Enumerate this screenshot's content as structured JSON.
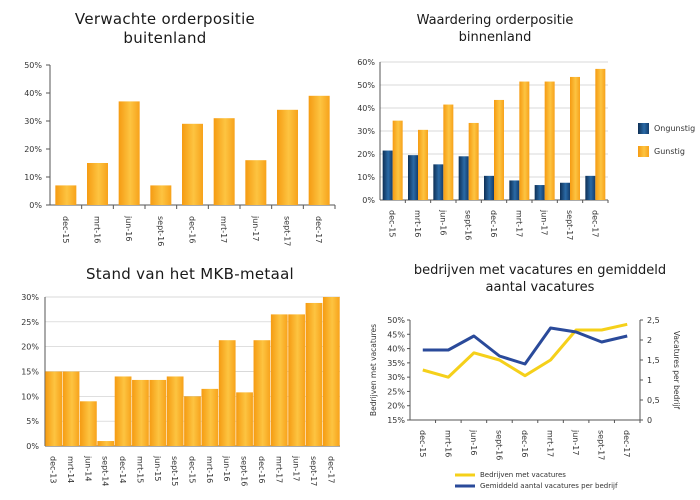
{
  "colors": {
    "bar_orange": "#f8a81e",
    "bar_light": "#fdd36a",
    "bar_dark": "#1c4a7c",
    "line_yellow": "#f5d01a",
    "line_blue": "#2a4a9a",
    "axis": "#555555",
    "grid": "#cccccc"
  },
  "chart_data": [
    {
      "id": "c1",
      "type": "bar",
      "title": "Verwachte orderpositie buitenland",
      "categories": [
        "dec-15",
        "mrt-16",
        "jun-16",
        "sept-16",
        "dec-16",
        "mrt-17",
        "jun-17",
        "sept-17",
        "dec-17"
      ],
      "values": [
        7,
        15,
        37,
        7,
        29,
        31,
        16,
        34,
        39
      ],
      "ylim": [
        0,
        50
      ],
      "yticks": [
        0,
        10,
        20,
        30,
        40,
        50
      ],
      "yformat": "%",
      "grid": false
    },
    {
      "id": "c2",
      "type": "bar",
      "title": "Waardering orderpositie binnenland",
      "categories": [
        "dec-15",
        "mrt-16",
        "jun-16",
        "sept-16",
        "dec-16",
        "mrt-17",
        "jun-17",
        "sept-17",
        "dec-17"
      ],
      "series": [
        {
          "name": "Ongunstig",
          "values": [
            21.5,
            19.5,
            15.5,
            19,
            10.5,
            8.5,
            6.5,
            7.5,
            10.5
          ]
        },
        {
          "name": "Gunstig",
          "values": [
            34.5,
            30.5,
            41.5,
            33.5,
            43.5,
            51.5,
            51.5,
            53.5,
            57
          ]
        }
      ],
      "ylim": [
        0,
        60
      ],
      "yticks": [
        0,
        10,
        20,
        30,
        40,
        50,
        60
      ],
      "yformat": "%",
      "grid": true,
      "legend": "right"
    },
    {
      "id": "c3",
      "type": "bar",
      "title": "Stand van het MKB-metaal",
      "categories": [
        "dec-13",
        "mrt-14",
        "jun-14",
        "sept-14",
        "dec-14",
        "mrt-15",
        "jun-15",
        "sept-15",
        "dec-15",
        "mrt-16",
        "jun-16",
        "sept-16",
        "dec-16",
        "mrt-17",
        "jun-17",
        "sept-17",
        "dec-17"
      ],
      "values": [
        15,
        15,
        9,
        1,
        14,
        13.3,
        13.3,
        14,
        10,
        11.5,
        21.3,
        10.8,
        21.3,
        26.5,
        26.5,
        28.8,
        30
      ],
      "ylim": [
        0,
        30
      ],
      "yticks": [
        0,
        5,
        10,
        15,
        20,
        25,
        30
      ],
      "yformat": "%",
      "grid": true
    },
    {
      "id": "c4",
      "type": "line",
      "title": "bedrijven met vacatures en gemiddeld aantal vacatures",
      "categories": [
        "dec-15",
        "mrt-16",
        "jun-16",
        "sept-16",
        "dec-16",
        "mrt-17",
        "jun-17",
        "sept-17",
        "dec-17"
      ],
      "series": [
        {
          "name": "Bedrijven met vacatures",
          "axis": "left",
          "values": [
            32.5,
            30,
            38.5,
            36,
            30.5,
            36,
            46.5,
            46.5,
            48.5
          ]
        },
        {
          "name": "Gemiddeld aantal vacatures per bedrijf",
          "axis": "right",
          "values": [
            1.75,
            1.75,
            2.1,
            1.6,
            1.4,
            2.3,
            2.2,
            1.95,
            2.1
          ]
        }
      ],
      "ylim_left": [
        15,
        50
      ],
      "yticks_left": [
        15,
        20,
        25,
        30,
        35,
        40,
        45,
        50
      ],
      "ylim_right": [
        0,
        2.5
      ],
      "yticks_right": [
        "0",
        "0,5",
        "1",
        "1,5",
        "2",
        "2,5"
      ],
      "ylabel": "Bedrijven met vacatures",
      "ylabel_right": "Vacatures per bedrijf",
      "legend": "bottom"
    }
  ]
}
